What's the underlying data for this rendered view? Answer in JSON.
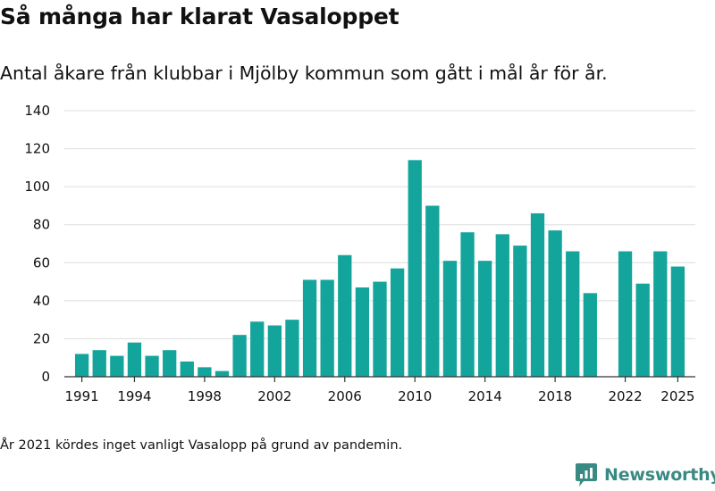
{
  "header": {
    "title": "Så många har klarat Vasaloppet",
    "subtitle": "Antal åkare från klubbar i Mjölby kommun som gått i mål år för år."
  },
  "footer": {
    "note": "År 2021 kördes inget vanligt Vasalopp på grund av pandemin.",
    "brand": "Newsworthy",
    "brand_icon": "bar-chart-logo-icon"
  },
  "colors": {
    "bar": "#13a59b",
    "grid": "#dddddd",
    "axis": "#333333",
    "brand": "#3a8a84"
  },
  "chart_data": {
    "type": "bar",
    "x": [
      1991,
      1992,
      1993,
      1994,
      1995,
      1996,
      1997,
      1998,
      1999,
      2000,
      2001,
      2002,
      2003,
      2004,
      2005,
      2006,
      2007,
      2008,
      2009,
      2010,
      2011,
      2012,
      2013,
      2014,
      2015,
      2016,
      2017,
      2018,
      2019,
      2020,
      2021,
      2022,
      2023,
      2024,
      2025
    ],
    "values": [
      12,
      14,
      11,
      18,
      11,
      14,
      8,
      5,
      3,
      22,
      29,
      27,
      30,
      51,
      51,
      64,
      47,
      50,
      57,
      114,
      90,
      61,
      76,
      61,
      75,
      69,
      86,
      77,
      66,
      44,
      null,
      66,
      49,
      66,
      58
    ],
    "x_tick_labels": [
      "1991",
      "1994",
      "1998",
      "2002",
      "2006",
      "2010",
      "2014",
      "2018",
      "2022",
      "2025"
    ],
    "y_ticks": [
      0,
      20,
      40,
      60,
      80,
      100,
      120,
      140
    ],
    "ylim": [
      0,
      140
    ],
    "xlim": [
      1990,
      2026
    ],
    "grid": true,
    "legend": "none"
  }
}
